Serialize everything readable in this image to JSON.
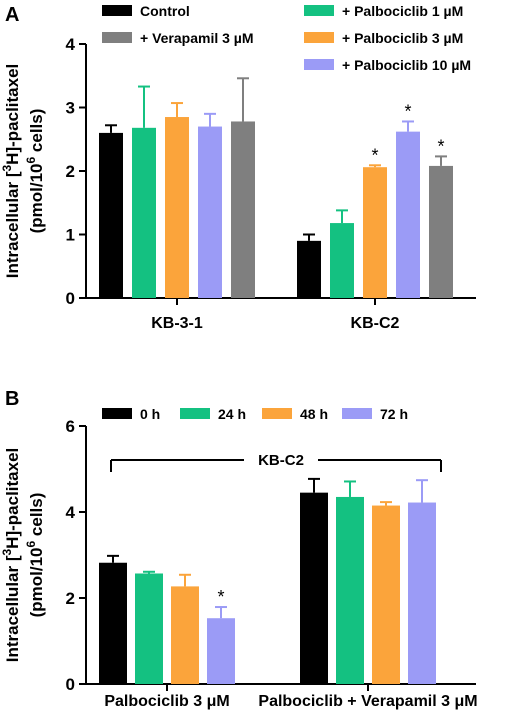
{
  "colors": {
    "black": "#000000",
    "green": "#14c181",
    "orange": "#fba43b",
    "purple": "#9b9bf6",
    "gray": "#7f7f7f"
  },
  "chart_data": [
    {
      "panel": "A",
      "type": "bar",
      "ylabel_line1": "Intracellular [3H]-paclitaxel",
      "ylabel_line2": "(pmol/106 cells)",
      "ylim": [
        0,
        4
      ],
      "yticks": [
        0,
        1,
        2,
        3,
        4
      ],
      "categories": [
        "KB-3-1",
        "KB-C2"
      ],
      "legend_placement": "top",
      "series": [
        {
          "name": "Control",
          "color_key": "black",
          "values": [
            2.6,
            0.9
          ],
          "errors": [
            0.12,
            0.1
          ],
          "sig": [
            false,
            false
          ]
        },
        {
          "name": "+ Palbociclib 1 µM",
          "color_key": "green",
          "values": [
            2.68,
            1.18
          ],
          "errors": [
            0.65,
            0.2
          ],
          "sig": [
            false,
            false
          ]
        },
        {
          "name": "+ Palbociclib 3 µM",
          "color_key": "orange",
          "values": [
            2.85,
            2.06
          ],
          "errors": [
            0.22,
            0.03
          ],
          "sig": [
            false,
            true
          ]
        },
        {
          "name": "+ Palbociclib 10 µM",
          "color_key": "purple",
          "values": [
            2.7,
            2.62
          ],
          "errors": [
            0.2,
            0.16
          ],
          "sig": [
            false,
            true
          ]
        },
        {
          "name": "+ Verapamil 3 µM",
          "color_key": "gray",
          "values": [
            2.78,
            2.08
          ],
          "errors": [
            0.68,
            0.15
          ],
          "sig": [
            false,
            true
          ]
        }
      ],
      "sig_marker": "*"
    },
    {
      "panel": "B",
      "type": "bar",
      "ylabel_line1": "Intracellular [3H]-paclitaxel",
      "ylabel_line2": "(pmol/106 cells)",
      "ylim": [
        0,
        6
      ],
      "yticks": [
        0,
        2,
        4,
        6
      ],
      "categories": [
        "Palbociclib 3 μM",
        "Palbociclib + Verapamil 3 μM"
      ],
      "group_label": "KB-C2",
      "legend_placement": "top",
      "series": [
        {
          "name": "0 h",
          "color_key": "black",
          "values": [
            2.82,
            4.45
          ],
          "errors": [
            0.16,
            0.32
          ],
          "sig": [
            false,
            false
          ]
        },
        {
          "name": "24 h",
          "color_key": "green",
          "values": [
            2.57,
            4.35
          ],
          "errors": [
            0.04,
            0.36
          ],
          "sig": [
            false,
            false
          ]
        },
        {
          "name": "48 h",
          "color_key": "orange",
          "values": [
            2.27,
            4.15
          ],
          "errors": [
            0.27,
            0.08
          ],
          "sig": [
            false,
            false
          ]
        },
        {
          "name": "72 h",
          "color_key": "purple",
          "values": [
            1.53,
            4.22
          ],
          "errors": [
            0.26,
            0.52
          ],
          "sig": [
            true,
            false
          ]
        }
      ],
      "sig_marker": "*"
    }
  ]
}
